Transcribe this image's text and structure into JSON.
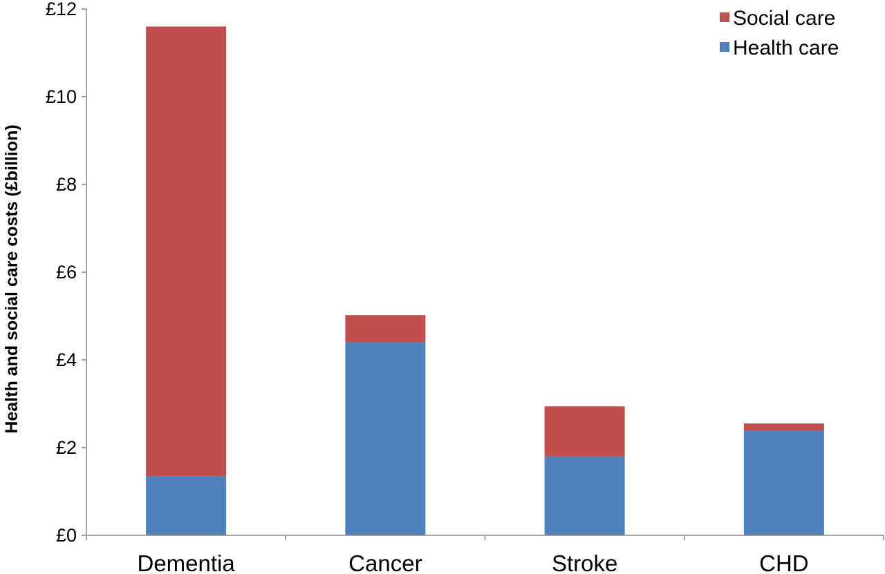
{
  "chart_data": {
    "type": "bar",
    "stacked": true,
    "title": "",
    "xlabel": "",
    "ylabel": "Health and social care costs (£billion)",
    "ylim": [
      0,
      12
    ],
    "yticks": [
      0,
      2,
      4,
      6,
      8,
      10,
      12
    ],
    "ytick_labels": [
      "£0",
      "£2",
      "£4",
      "£6",
      "£8",
      "£10",
      "£12"
    ],
    "categories": [
      "Dementia",
      "Cancer",
      "Stroke",
      "CHD"
    ],
    "series": [
      {
        "name": "Health care",
        "color": "#4f81bd",
        "values": [
          1.35,
          4.4,
          1.8,
          2.38
        ]
      },
      {
        "name": "Social care",
        "color": "#c0504d",
        "values": [
          10.25,
          0.62,
          1.14,
          0.17
        ]
      }
    ],
    "legend": {
      "position": "top-right",
      "order": [
        "Social care",
        "Health care"
      ]
    },
    "grid": false
  }
}
